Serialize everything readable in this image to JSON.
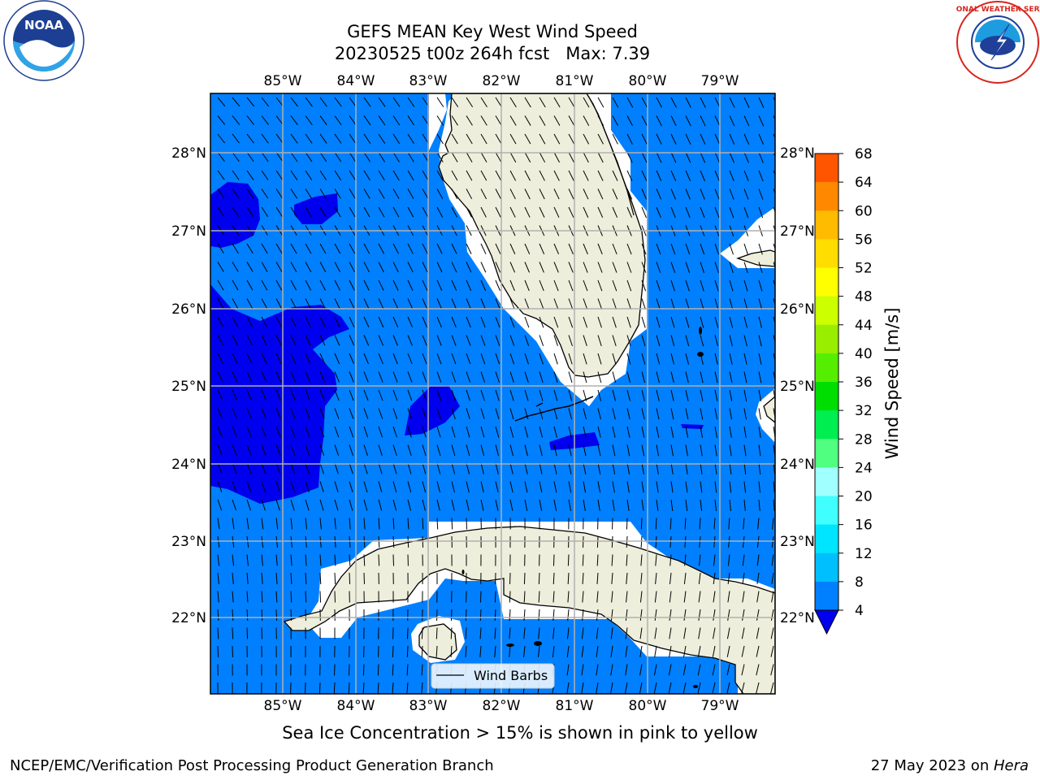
{
  "header": {
    "title_line1": "GEFS MEAN Key West Wind Speed",
    "title_line2": "20230525 t00z 264h fcst   Max: 7.39"
  },
  "map": {
    "lon_labels": [
      "85°W",
      "84°W",
      "83°W",
      "82°W",
      "81°W",
      "80°W",
      "79°W"
    ],
    "lat_labels": [
      "28°N",
      "27°N",
      "26°N",
      "25°N",
      "24°N",
      "23°N",
      "22°N"
    ],
    "legend_label": "Wind Barbs",
    "ocean_colors": {
      "light_blue": "#0080ff",
      "dark_blue": "#0000ee"
    },
    "land_color": "#eeeedc",
    "grid_color": "#b0b0b0"
  },
  "colorbar": {
    "label": "Wind Speed [m/s]",
    "tick_labels": [
      "4",
      "8",
      "12",
      "16",
      "20",
      "24",
      "28",
      "32",
      "36",
      "40",
      "44",
      "48",
      "52",
      "56",
      "60",
      "64",
      "68"
    ],
    "colors": [
      "#0080ff",
      "#00bfff",
      "#00e5ff",
      "#40ffff",
      "#a0ffff",
      "#50ff80",
      "#00ee50",
      "#00dd00",
      "#55ee00",
      "#99ee00",
      "#ccff00",
      "#ffff00",
      "#ffdd00",
      "#ffbb00",
      "#ff8800",
      "#ff5500",
      "#ff2200",
      "#ff0000"
    ],
    "underflow_color": "#0000ee"
  },
  "caption": "Sea Ice Concentration > 15% is shown in pink to yellow",
  "footer": {
    "left": "NCEP/EMC/Verification Post Processing Product Generation Branch",
    "right_prefix": "27 May 2023 on ",
    "right_host": "Hera"
  },
  "logos": {
    "noaa": "NOAA",
    "nws": "NATIONAL WEATHER SERVICE"
  }
}
